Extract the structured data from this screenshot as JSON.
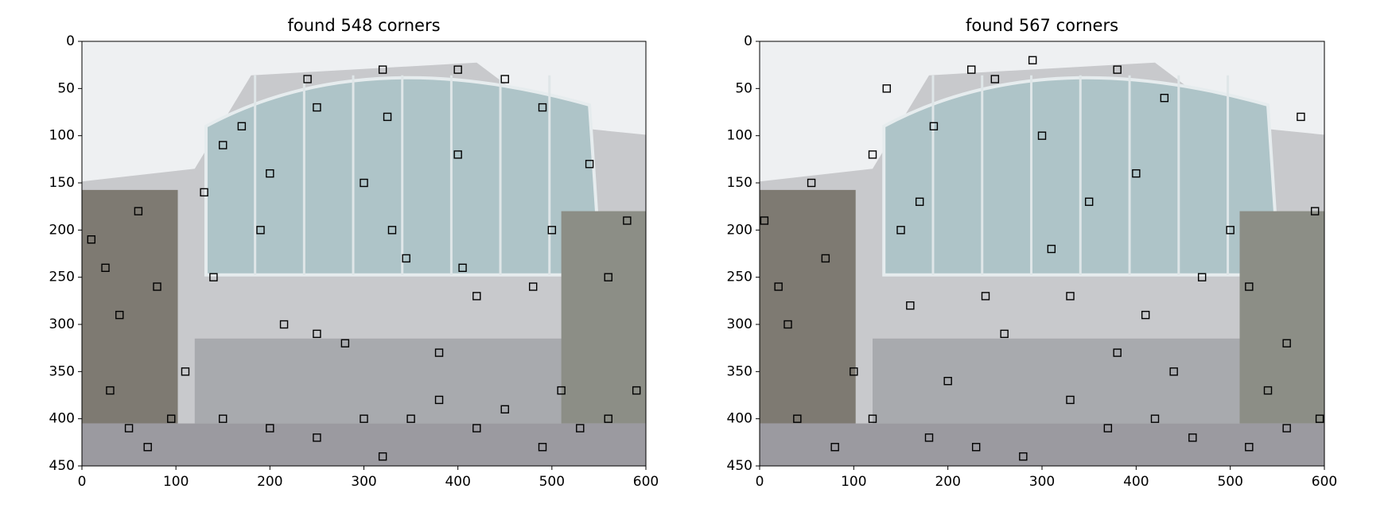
{
  "chart_data": [
    {
      "type": "scatter",
      "title": "found 548 corners",
      "marker_color": "#000000",
      "xlim": [
        0,
        600
      ],
      "ylim": [
        450,
        0
      ],
      "xticks": [
        0,
        100,
        200,
        300,
        400,
        500,
        600
      ],
      "yticks": [
        0,
        50,
        100,
        150,
        200,
        250,
        300,
        350,
        400,
        450
      ],
      "x": [
        10,
        25,
        40,
        60,
        80,
        95,
        110,
        130,
        140,
        150,
        170,
        190,
        200,
        215,
        240,
        250,
        250,
        280,
        300,
        320,
        325,
        330,
        345,
        380,
        400,
        400,
        405,
        420,
        450,
        480,
        490,
        500,
        510,
        540,
        560,
        580,
        590,
        30,
        50,
        70,
        150,
        200,
        250,
        300,
        320,
        350,
        380,
        420,
        450,
        490,
        530,
        560
      ],
      "y": [
        210,
        240,
        290,
        180,
        260,
        400,
        350,
        160,
        250,
        110,
        90,
        200,
        140,
        300,
        40,
        70,
        310,
        320,
        150,
        30,
        80,
        200,
        230,
        330,
        30,
        120,
        240,
        270,
        40,
        260,
        70,
        200,
        370,
        130,
        250,
        190,
        370,
        370,
        410,
        430,
        400,
        410,
        420,
        400,
        440,
        400,
        380,
        410,
        390,
        430,
        410,
        400
      ]
    },
    {
      "type": "scatter",
      "title": "found 567 corners",
      "marker_color": "#000000",
      "xlim": [
        0,
        600
      ],
      "ylim": [
        450,
        0
      ],
      "xticks": [
        0,
        100,
        200,
        300,
        400,
        500,
        600
      ],
      "yticks": [
        0,
        50,
        100,
        150,
        200,
        250,
        300,
        350,
        400,
        450
      ],
      "x": [
        5,
        20,
        30,
        55,
        70,
        80,
        100,
        120,
        135,
        150,
        160,
        170,
        185,
        200,
        225,
        240,
        250,
        260,
        290,
        300,
        310,
        330,
        350,
        380,
        380,
        400,
        410,
        430,
        440,
        470,
        500,
        520,
        540,
        560,
        575,
        590,
        595,
        40,
        120,
        180,
        230,
        280,
        330,
        370,
        420,
        460,
        520,
        560
      ],
      "y": [
        190,
        260,
        300,
        150,
        230,
        430,
        350,
        120,
        50,
        200,
        280,
        170,
        90,
        360,
        30,
        270,
        40,
        310,
        20,
        100,
        220,
        270,
        170,
        30,
        330,
        140,
        290,
        60,
        350,
        250,
        200,
        260,
        370,
        320,
        80,
        180,
        400,
        400,
        400,
        420,
        430,
        440,
        380,
        410,
        400,
        420,
        430,
        410
      ]
    }
  ]
}
